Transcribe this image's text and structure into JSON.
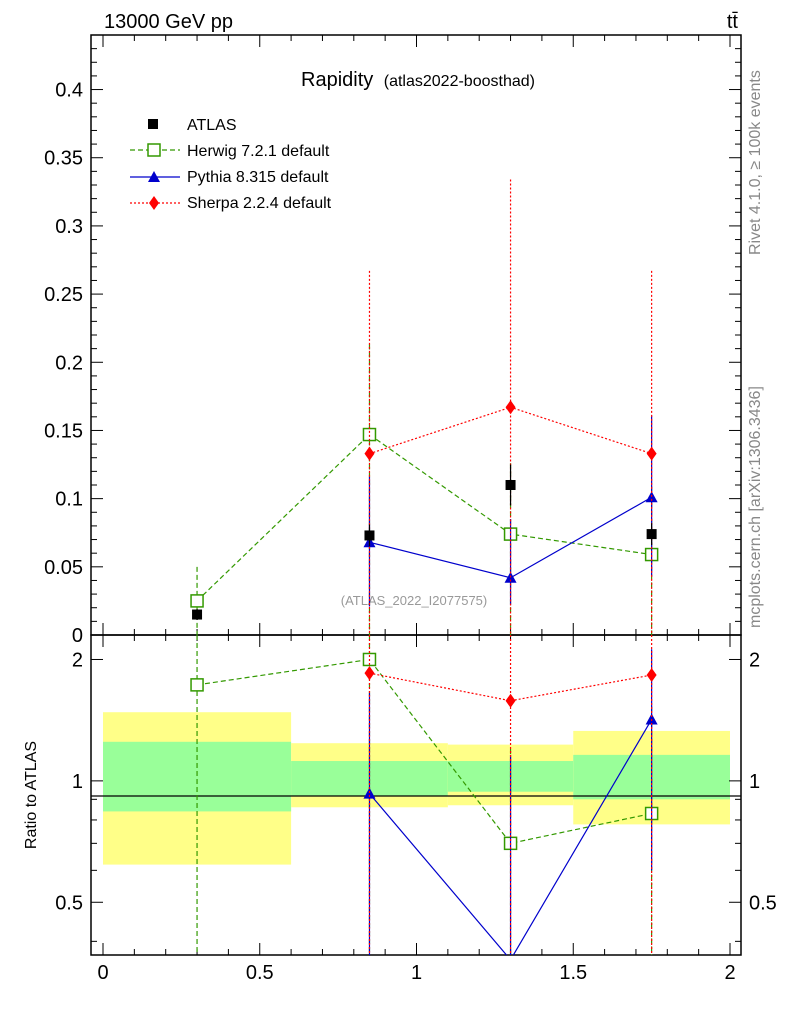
{
  "header": {
    "energy_label": "13000 GeV pp",
    "process_label": "tt̄"
  },
  "side_labels": {
    "rivet": "Rivet 4.1.0, ≥ 100k events",
    "site": "mcplots.cern.ch [arXiv:1306.3436]"
  },
  "watermark": "(ATLAS_2022_I2077575)",
  "chart_data": {
    "type": "scatter",
    "title_main": "Rapidity",
    "title_sub": "(atlas2022-boosthad)",
    "xlim": [
      -0.0,
      2.0
    ],
    "ylim_main": [
      0,
      0.44
    ],
    "ylim_ratio": [
      0.37,
      2.3
    ],
    "ratio_ylabel": "Ratio to ATLAS",
    "x_ticks": [
      "0",
      "0.5",
      "1",
      "1.5",
      "2"
    ],
    "y_ticks_main": [
      "0",
      "0.05",
      "0.1",
      "0.15",
      "0.2",
      "0.25",
      "0.3",
      "0.35",
      "0.4"
    ],
    "y_ticks_ratio": [
      "0.5",
      "1",
      "2"
    ],
    "bins": [
      [
        0.0,
        0.6
      ],
      [
        0.6,
        1.1
      ],
      [
        1.1,
        1.5
      ],
      [
        1.5,
        2.0
      ]
    ],
    "band_green": [
      [
        0.84,
        1.25
      ],
      [
        0.92,
        1.12
      ],
      [
        0.94,
        1.12
      ],
      [
        0.9,
        1.16
      ]
    ],
    "band_yellow": [
      [
        0.62,
        1.48
      ],
      [
        0.86,
        1.24
      ],
      [
        0.87,
        1.23
      ],
      [
        0.78,
        1.33
      ]
    ],
    "x": [
      0.3,
      0.85,
      1.3,
      1.75
    ],
    "series": [
      {
        "name": "ATLAS",
        "color": "#000000",
        "marker": "square-filled",
        "dash": "none",
        "values": [
          0.015,
          0.073,
          0.11,
          0.074
        ],
        "err_low": [
          0.004,
          0.008,
          0.015,
          0.008
        ],
        "err_high": [
          0.004,
          0.008,
          0.015,
          0.008
        ],
        "ratio": [
          1,
          1,
          1,
          1
        ]
      },
      {
        "name": "Herwig 7.2.1 default",
        "color": "#339900",
        "marker": "square-open",
        "dash": "5,3",
        "values": [
          0.025,
          0.147,
          0.074,
          0.059
        ],
        "err_low": [
          0.025,
          0.147,
          0.074,
          0.059
        ],
        "err_high": [
          0.025,
          0.066,
          0.052,
          0.05
        ],
        "ratio": [
          1.73,
          2.0,
          0.7,
          0.83
        ],
        "ratio_err_low": [
          1.6,
          1.8,
          0.5,
          0.6
        ],
        "ratio_err_high": [
          1.7,
          0.9,
          0.5,
          0.7
        ]
      },
      {
        "name": "Pythia 8.315 default",
        "color": "#0000cc",
        "marker": "triangle",
        "dash": "none",
        "values": [
          0.0,
          0.068,
          0.042,
          0.101
        ],
        "err_low": [
          0.0,
          0.047,
          0.02,
          0.058
        ],
        "err_high": [
          0.0,
          0.048,
          0.043,
          0.06
        ],
        "ratio": [
          null,
          0.93,
          0.36,
          1.42
        ],
        "ratio_err_low": [
          0,
          0.8,
          0.3,
          0.82
        ],
        "ratio_err_high": [
          0,
          0.72,
          0.8,
          0.7
        ]
      },
      {
        "name": "Sherpa 2.2.4 default",
        "color": "#ff0000",
        "marker": "diamond",
        "dash": "2,2",
        "values": [
          0.0,
          0.133,
          0.167,
          0.133
        ],
        "err_low": [
          0.0,
          0.133,
          0.167,
          0.133
        ],
        "err_high": [
          0.0,
          0.134,
          0.167,
          0.134
        ],
        "ratio": [
          null,
          1.85,
          1.58,
          1.83
        ],
        "ratio_err_low": [
          0,
          1.8,
          1.5,
          1.8
        ],
        "ratio_err_high": [
          0,
          1.8,
          1.8,
          1.8
        ]
      }
    ]
  }
}
